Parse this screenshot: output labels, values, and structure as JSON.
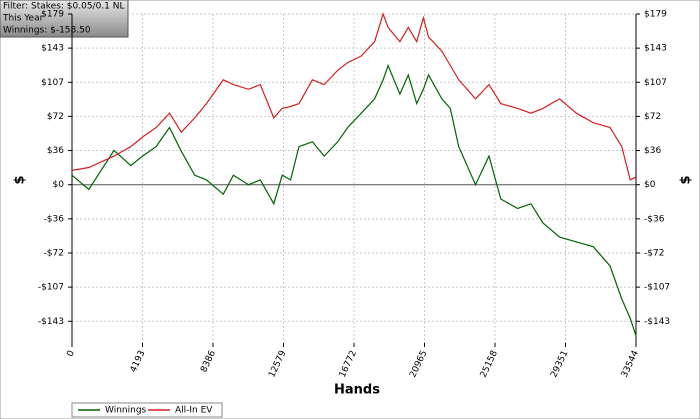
{
  "chart_data": {
    "type": "line",
    "annotations": [
      "Filter: Stakes: $0.05/0.1 NL",
      "This Year",
      "Winnings: $-158.50"
    ],
    "xlabel": "Hands",
    "ylabel": "$",
    "y2label": "$",
    "x": [
      0,
      1000,
      2500,
      3500,
      4200,
      5000,
      5800,
      6500,
      7300,
      8000,
      9000,
      9600,
      10500,
      11200,
      12000,
      12500,
      13000,
      13500,
      14300,
      15000,
      15800,
      16400,
      17200,
      18000,
      18500,
      18800,
      19500,
      20000,
      20500,
      20900,
      21200,
      22000,
      22500,
      23000,
      24000,
      24800,
      25500,
      26500,
      27300,
      28000,
      29000,
      30000,
      31000,
      32000,
      32700,
      33200,
      33544
    ],
    "series": [
      {
        "name": "Winnings",
        "color": "#006400",
        "values": [
          10,
          -5,
          36,
          20,
          30,
          40,
          60,
          35,
          10,
          5,
          -10,
          10,
          0,
          5,
          -20,
          10,
          5,
          40,
          45,
          30,
          45,
          60,
          75,
          90,
          110,
          125,
          95,
          115,
          85,
          100,
          115,
          90,
          80,
          40,
          0,
          30,
          -15,
          -25,
          -20,
          -40,
          -55,
          -60,
          -65,
          -85,
          -120,
          -140,
          -158.5
        ]
      },
      {
        "name": "All-In EV",
        "color": "#d42020",
        "values": [
          15,
          18,
          30,
          40,
          50,
          60,
          75,
          55,
          70,
          85,
          110,
          105,
          100,
          105,
          70,
          80,
          82,
          85,
          110,
          105,
          120,
          128,
          135,
          150,
          179,
          165,
          150,
          165,
          150,
          175,
          155,
          140,
          125,
          110,
          90,
          105,
          85,
          80,
          75,
          80,
          90,
          75,
          65,
          60,
          40,
          5,
          8
        ]
      }
    ],
    "xlim": [
      0,
      33544
    ],
    "xticks": [
      0,
      4193,
      8386,
      12579,
      16772,
      20965,
      25158,
      29351,
      33544
    ],
    "ylim": [
      -166,
      179
    ],
    "yticks": [
      {
        "value": 179,
        "label": "$179"
      },
      {
        "value": 143.2,
        "label": "$143"
      },
      {
        "value": 107.4,
        "label": "$107"
      },
      {
        "value": 71.6,
        "label": "$72"
      },
      {
        "value": 35.8,
        "label": "$36"
      },
      {
        "value": 0,
        "label": "$0"
      },
      {
        "value": -35.8,
        "label": "-$36"
      },
      {
        "value": -71.6,
        "label": "-$72"
      },
      {
        "value": -107.4,
        "label": "-$107"
      },
      {
        "value": -143.2,
        "label": "-$143"
      }
    ],
    "grid": true,
    "legend": "bottom-left"
  }
}
